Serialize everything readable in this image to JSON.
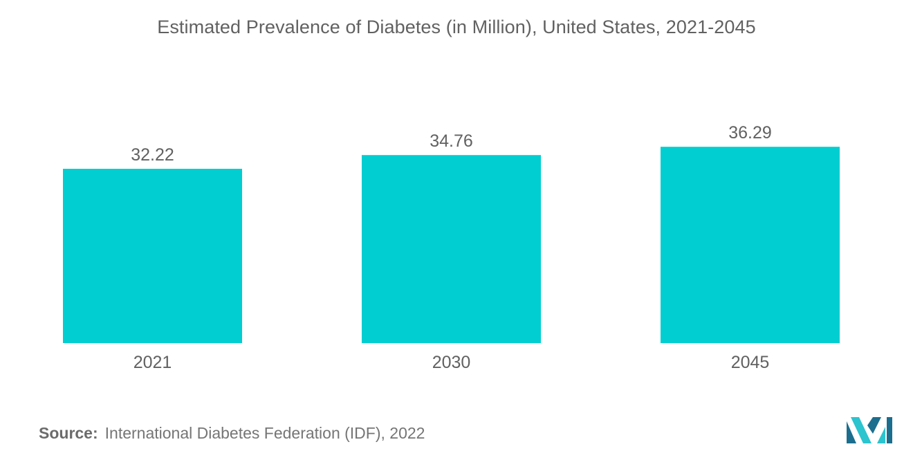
{
  "chart_data": {
    "type": "bar",
    "title": "Estimated Prevalence of Diabetes (in Million), United States, 2021-2045",
    "categories": [
      "2021",
      "2030",
      "2045"
    ],
    "values": [
      32.22,
      34.76,
      36.29
    ],
    "value_labels": [
      "32.22",
      "34.76",
      "36.29"
    ],
    "xlabel": "",
    "ylabel": "",
    "bar_color": "#00CED1",
    "grid": false
  },
  "source": {
    "label": "Source:",
    "text": "International Diabetes Federation (IDF), 2022"
  },
  "colors": {
    "bar": "#00CED1",
    "text": "#616161",
    "logo_dark": "#1B6E8E",
    "logo_light": "#2BC4CF"
  },
  "logo": {
    "icon": "mordor-intelligence-logo-icon"
  }
}
